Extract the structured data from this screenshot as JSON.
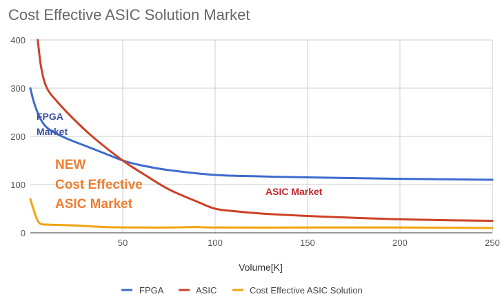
{
  "chart_data": {
    "type": "line",
    "title": "Cost Effective ASIC Solution Market",
    "xlabel": "Volume[K]",
    "ylabel": "",
    "xlim": [
      0,
      250
    ],
    "ylim": [
      0,
      400
    ],
    "x_ticks": [
      50,
      100,
      150,
      200,
      250
    ],
    "y_ticks": [
      0,
      100,
      200,
      300,
      400
    ],
    "grid": true,
    "legend_position": "bottom",
    "series": [
      {
        "name": "FPGA",
        "color": "#3d6bcc",
        "points": [
          [
            0,
            300
          ],
          [
            2,
            270
          ],
          [
            5,
            240
          ],
          [
            8,
            222
          ],
          [
            12,
            210
          ],
          [
            20,
            195
          ],
          [
            30,
            180
          ],
          [
            40,
            165
          ],
          [
            50,
            150
          ],
          [
            60,
            140
          ],
          [
            75,
            130
          ],
          [
            100,
            120
          ],
          [
            125,
            117
          ],
          [
            150,
            115
          ],
          [
            200,
            112
          ],
          [
            250,
            110
          ]
        ]
      },
      {
        "name": "ASIC",
        "color": "#cc4125",
        "points": [
          [
            4,
            400
          ],
          [
            6,
            340
          ],
          [
            9,
            300
          ],
          [
            15,
            270
          ],
          [
            25,
            230
          ],
          [
            35,
            195
          ],
          [
            50,
            150
          ],
          [
            62,
            120
          ],
          [
            75,
            90
          ],
          [
            90,
            65
          ],
          [
            100,
            50
          ],
          [
            110,
            45
          ],
          [
            125,
            40
          ],
          [
            150,
            35
          ],
          [
            200,
            28
          ],
          [
            250,
            25
          ]
        ]
      },
      {
        "name": "Cost Effective ASIC Solution",
        "color": "#f1a30f",
        "points": [
          [
            0,
            70
          ],
          [
            2,
            45
          ],
          [
            4,
            25
          ],
          [
            6,
            18
          ],
          [
            10,
            17
          ],
          [
            25,
            15
          ],
          [
            40,
            12
          ],
          [
            60,
            11
          ],
          [
            75,
            11
          ],
          [
            90,
            12
          ],
          [
            100,
            11
          ],
          [
            150,
            11
          ],
          [
            200,
            11
          ],
          [
            250,
            10
          ]
        ]
      }
    ],
    "annotations": {
      "fpga_line1": "FPGA",
      "fpga_line2": "Market",
      "asic": "ASIC Market",
      "new_line1": "NEW",
      "new_line2": "Cost Effective",
      "new_line3": "ASIC Market",
      "fpga_color": "#3b4ba8",
      "asic_color": "#c0272d",
      "new_color": "#ed7d31"
    }
  }
}
